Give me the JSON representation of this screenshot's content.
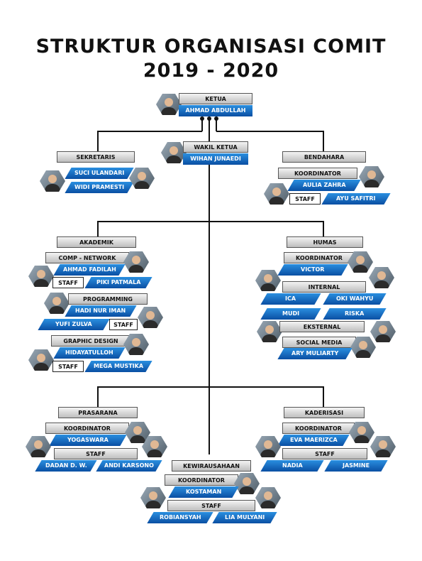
{
  "title_line1": "STRUKTUR ORGANISASI COMIT",
  "title_line2": "2019 - 2020",
  "ketua": {
    "role": "KETUA",
    "name": "AHMAD ABDULLAH"
  },
  "wakil": {
    "role": "WAKIL KETUA",
    "name": "WIHAN JUNAEDI"
  },
  "sekretaris": {
    "role": "SEKRETARIS",
    "members": [
      "SUCI ULANDARI",
      "WIDI PRAMESTI"
    ]
  },
  "bendahara": {
    "role": "BENDAHARA",
    "koordinator_label": "KOORDINATOR",
    "koordinator": "AULIA ZAHRA",
    "staff_label": "STAFF",
    "staff": "AYU SAFITRI"
  },
  "akademik": {
    "role": "AKADEMIK",
    "comp_network": {
      "label": "COMP - NETWORK",
      "koordinator": "AHMAD FADILAH",
      "staff_label": "STAFF",
      "staff": "PIKI PATMALA"
    },
    "programming": {
      "label": "PROGRAMMING",
      "koordinator": "HADI NUR IMAN",
      "staff_label": "STAFF",
      "staff": "YUFI ZULVA"
    },
    "graphic_design": {
      "label": "GRAPHIC DESIGN",
      "koordinator": "HIDAYATULLOH",
      "staff_label": "STAFF",
      "staff": "MEGA MUSTIKA"
    }
  },
  "humas": {
    "role": "HUMAS",
    "koordinator_label": "KOORDINATOR",
    "koordinator": "VICTOR",
    "internal": {
      "label": "INTERNAL",
      "members": [
        "ICA",
        "OKI WAHYU",
        "MUDI",
        "RISKA"
      ]
    },
    "eksternal": {
      "label": "EKSTERNAL"
    },
    "social_media": {
      "label": "SOCIAL MEDIA",
      "member": "ARY MULIARTY"
    }
  },
  "prasarana": {
    "role": "PRASARANA",
    "koordinator_label": "KOORDINATOR",
    "koordinator": "YOGASWARA",
    "staff_label": "STAFF",
    "staff": [
      "DADAN D. W.",
      "ANDI KARSONO"
    ]
  },
  "kaderisasi": {
    "role": "KADERISASI",
    "koordinator_label": "KOORDINATOR",
    "koordinator": "EVA MAERIZCA",
    "staff_label": "STAFF",
    "staff": [
      "NADIA",
      "JASMINE"
    ]
  },
  "kewirausahaan": {
    "role": "KEWIRAUSAHAAN",
    "koordinator_label": "KOORDINATOR",
    "koordinator": "KOSTAMAN",
    "staff_label": "STAFF",
    "staff": [
      "ROBIANSYAH",
      "LIA MULYANI"
    ]
  },
  "colors": {
    "blue_top": "#2a8fe0",
    "blue_bottom": "#0a4fa3",
    "line": "#111111"
  }
}
